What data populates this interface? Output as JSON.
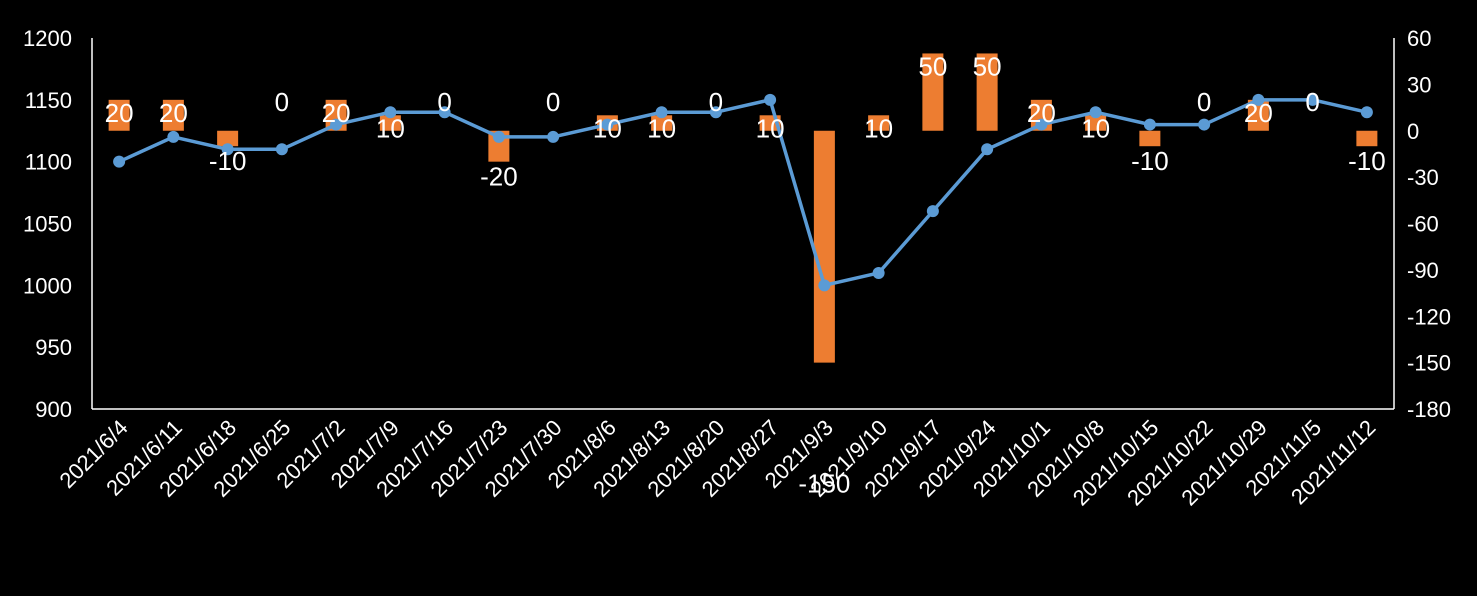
{
  "chart_data": {
    "type": "bar+line",
    "categories": [
      "2021/6/4",
      "2021/6/11",
      "2021/6/18",
      "2021/6/25",
      "2021/7/2",
      "2021/7/9",
      "2021/7/16",
      "2021/7/23",
      "2021/7/30",
      "2021/8/6",
      "2021/8/13",
      "2021/8/20",
      "2021/8/27",
      "2021/9/3",
      "2021/9/10",
      "2021/9/17",
      "2021/9/24",
      "2021/10/1",
      "2021/10/8",
      "2021/10/15",
      "2021/10/22",
      "2021/10/29",
      "2021/11/5",
      "2021/11/12"
    ],
    "line_series": {
      "axis": "left",
      "color": "#5B9BD5",
      "values": [
        1100,
        1120,
        1110,
        1110,
        1130,
        1140,
        1140,
        1120,
        1120,
        1130,
        1140,
        1140,
        1150,
        1000,
        1010,
        1060,
        1110,
        1130,
        1140,
        1130,
        1130,
        1150,
        1150,
        1140
      ]
    },
    "bar_series": {
      "axis": "right",
      "color": "#ED7D31",
      "values": [
        20,
        20,
        -10,
        0,
        20,
        10,
        0,
        -20,
        0,
        10,
        10,
        0,
        10,
        -150,
        10,
        50,
        50,
        20,
        10,
        -10,
        0,
        20,
        0,
        -10
      ],
      "data_labels": [
        "20",
        "20",
        "-10",
        "0",
        "20",
        "10",
        "0",
        "-20",
        "0",
        "10",
        "10",
        "0",
        "10",
        "-150",
        "10",
        "50",
        "50",
        "20",
        "10",
        "-10",
        "0",
        "20",
        "0",
        "-10"
      ]
    },
    "left_axis": {
      "range": [
        900,
        1200
      ],
      "ticks": [
        "900",
        "950",
        "1000",
        "1050",
        "1100",
        "1150",
        "1200"
      ]
    },
    "right_axis": {
      "range": [
        -180,
        60
      ],
      "ticks": [
        "-180",
        "-150",
        "-120",
        "-90",
        "-60",
        "-30",
        "0",
        "30",
        "60"
      ]
    },
    "grid": false,
    "legend": "none"
  }
}
